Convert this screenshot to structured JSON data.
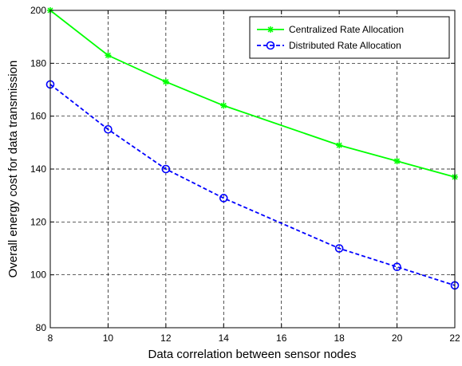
{
  "chart_data": {
    "type": "line",
    "title": "",
    "xlabel": "Data correlation between sensor nodes",
    "ylabel": "Overall energy cost for data transmission",
    "xlim": [
      8,
      22
    ],
    "ylim": [
      80,
      200
    ],
    "xticks": [
      8,
      10,
      12,
      14,
      16,
      18,
      20,
      22
    ],
    "yticks": [
      80,
      100,
      120,
      140,
      160,
      180,
      200
    ],
    "grid": true,
    "legend_position": "top-right",
    "series": [
      {
        "name": "Centralized Rate Allocation",
        "color": "#00ff00",
        "line_style": "solid",
        "marker": "star",
        "x": [
          8,
          10,
          12,
          14,
          18,
          20,
          22
        ],
        "y": [
          200,
          183,
          173,
          164,
          149,
          143,
          137
        ]
      },
      {
        "name": "Distributed Rate Allocation",
        "color": "#0000ff",
        "line_style": "dashed",
        "marker": "circle",
        "x": [
          8,
          10,
          12,
          14,
          18,
          20,
          22
        ],
        "y": [
          172,
          155,
          140,
          129,
          110,
          103,
          96
        ]
      }
    ]
  }
}
